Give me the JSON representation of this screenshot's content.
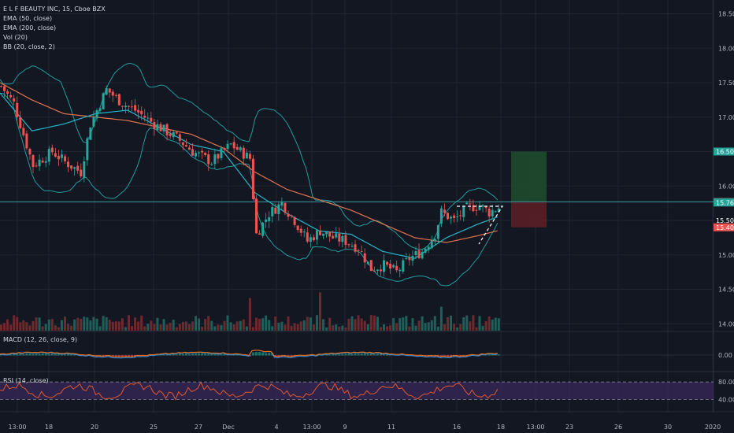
{
  "header": {
    "symbol_title": "E L F BEAUTY INC, 15, Cboe BZX",
    "indicators": [
      "EMA (50, close)",
      "EMA (200, close)",
      "Vol (20)",
      "BB (20, close, 2)"
    ]
  },
  "macd": {
    "label": "MACD (12, 26, close, 9)",
    "zero_label": "0.00"
  },
  "rsi": {
    "label": "RSI (14, close)",
    "upper_label": "80.00",
    "lower_label": "40.00",
    "upper": 70,
    "lower": 30
  },
  "colors": {
    "background": "#131722",
    "grid": "#1f2433",
    "axis_text": "#b2b5be",
    "candle_up": "#26a69a",
    "candle_down": "#ef5350",
    "ema50": "#1fb5c8",
    "ema200": "#e2724e",
    "bollinger": "#1f9b9b",
    "rsi_line": "#e2572d",
    "rsi_band": "#3b2a5c",
    "target_zone": "#1e4a2c",
    "stop_zone": "#5a1e26"
  },
  "chart_data": {
    "type": "candlestick",
    "title": "E L F BEAUTY INC, 15, Cboe BZX",
    "ylim": [
      13.9,
      18.7
    ],
    "y_ticks": [
      "18.50",
      "18.00",
      "17.50",
      "17.00",
      "16.50",
      "16.00",
      "15.50",
      "15.00",
      "14.50",
      "14.00"
    ],
    "x_ticks": [
      "13:00",
      "18",
      "20",
      "25",
      "27",
      "Dec",
      "4",
      "13:00",
      "9",
      "11",
      "16",
      "18",
      "13:00",
      "23",
      "26",
      "30",
      "2020"
    ],
    "price_path": [
      [
        0,
        17.45
      ],
      [
        4,
        17.2
      ],
      [
        10,
        16.3
      ],
      [
        16,
        16.5
      ],
      [
        20,
        16.35
      ],
      [
        25,
        16.2
      ],
      [
        28,
        16.9
      ],
      [
        33,
        17.4
      ],
      [
        38,
        17.2
      ],
      [
        42,
        17.1
      ],
      [
        48,
        16.9
      ],
      [
        55,
        16.7
      ],
      [
        60,
        16.5
      ],
      [
        66,
        16.35
      ],
      [
        72,
        16.6
      ],
      [
        78,
        16.4
      ],
      [
        80,
        15.3
      ],
      [
        84,
        15.6
      ],
      [
        88,
        15.75
      ],
      [
        92,
        15.5
      ],
      [
        96,
        15.2
      ],
      [
        100,
        15.35
      ],
      [
        104,
        15.25
      ],
      [
        108,
        15.2
      ],
      [
        112,
        15.1
      ],
      [
        116,
        14.8
      ],
      [
        120,
        14.85
      ],
      [
        124,
        14.75
      ],
      [
        128,
        14.95
      ],
      [
        132,
        15.05
      ],
      [
        136,
        15.3
      ],
      [
        138,
        15.62
      ],
      [
        142,
        15.5
      ],
      [
        146,
        15.68
      ],
      [
        150,
        15.72
      ],
      [
        153,
        15.62
      ],
      [
        156,
        15.69
      ]
    ],
    "ema50_path": [
      [
        0,
        17.35
      ],
      [
        10,
        16.8
      ],
      [
        20,
        16.9
      ],
      [
        30,
        17.05
      ],
      [
        40,
        17.1
      ],
      [
        50,
        16.85
      ],
      [
        60,
        16.6
      ],
      [
        70,
        16.5
      ],
      [
        80,
        15.9
      ],
      [
        90,
        15.6
      ],
      [
        100,
        15.35
      ],
      [
        110,
        15.3
      ],
      [
        120,
        15.05
      ],
      [
        130,
        14.95
      ],
      [
        140,
        15.25
      ],
      [
        150,
        15.45
      ],
      [
        156,
        15.55
      ]
    ],
    "ema200_path": [
      [
        0,
        17.5
      ],
      [
        10,
        17.25
      ],
      [
        20,
        17.05
      ],
      [
        30,
        17.0
      ],
      [
        40,
        16.95
      ],
      [
        50,
        16.85
      ],
      [
        60,
        16.75
      ],
      [
        70,
        16.55
      ],
      [
        80,
        16.2
      ],
      [
        90,
        15.95
      ],
      [
        100,
        15.8
      ],
      [
        110,
        15.65
      ],
      [
        120,
        15.45
      ],
      [
        130,
        15.25
      ],
      [
        140,
        15.18
      ],
      [
        150,
        15.28
      ],
      [
        156,
        15.35
      ]
    ],
    "last_price": 15.76,
    "price_labels": [
      {
        "value": 16.5,
        "text": "16.50",
        "color": "#26a69a"
      },
      {
        "value": 15.77,
        "text": "15.77",
        "color": "#5d606b"
      },
      {
        "value": 15.76,
        "text": "15.76",
        "color": "#26a69a"
      },
      {
        "value": 15.5,
        "text": "15.50",
        "color": "#131722"
      },
      {
        "value": 15.4,
        "text": "15.40",
        "color": "#ef5350"
      }
    ],
    "position": {
      "entry": 15.77,
      "target": 16.5,
      "stop": 15.4
    }
  }
}
